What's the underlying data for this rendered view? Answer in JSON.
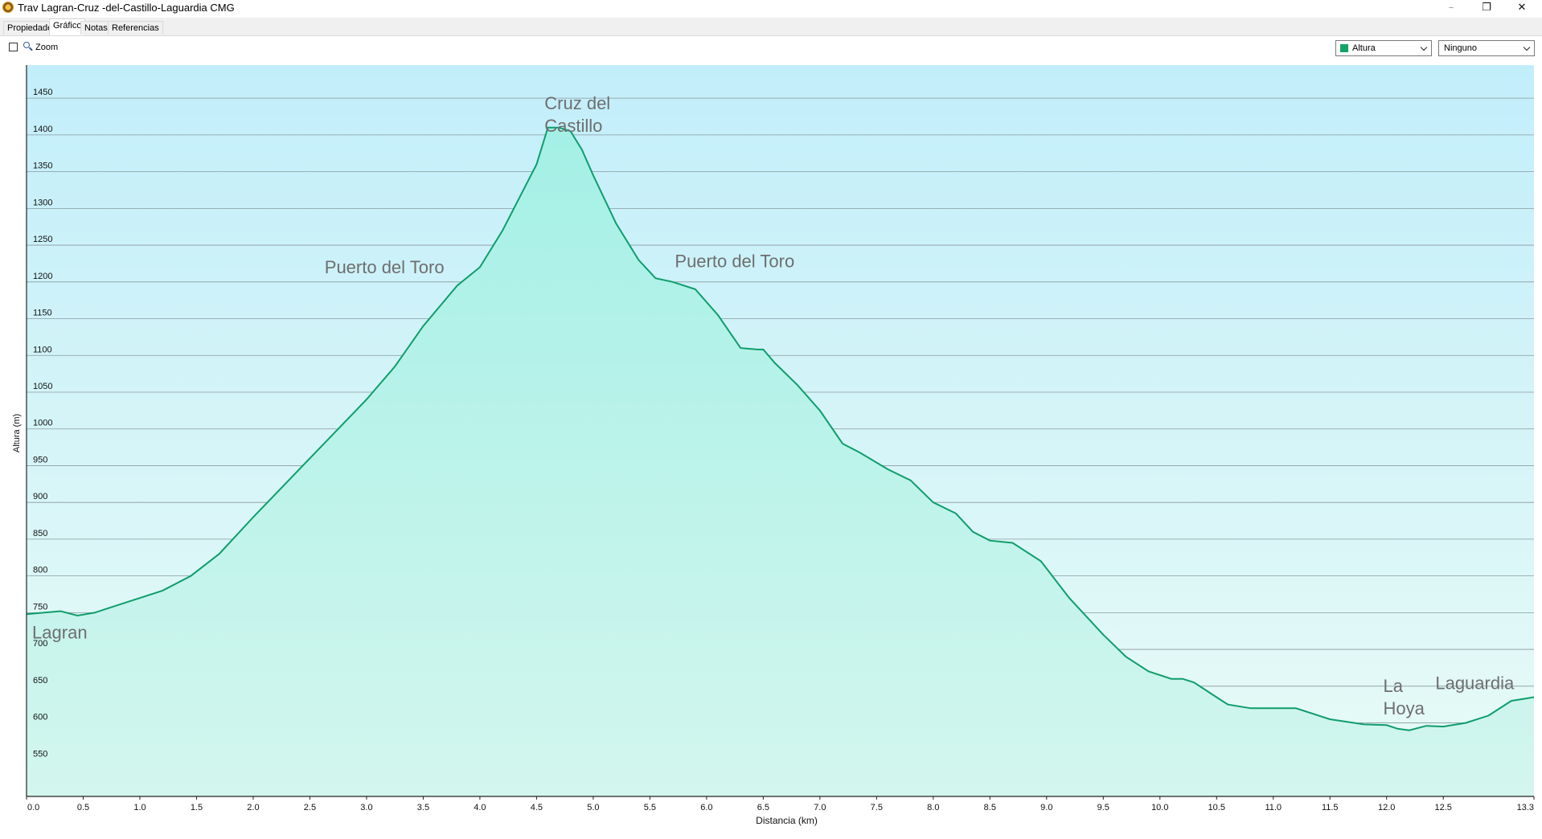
{
  "window": {
    "title": "Trav Lagran-Cruz -del-Castillo-Laguardia CMG",
    "icon": "app-compass-icon",
    "controls": {
      "minimize": "–",
      "maximize": "❐",
      "close": "✕"
    }
  },
  "tabs": [
    {
      "label": "Propiedades",
      "active": false
    },
    {
      "label": "Gráfico",
      "active": true
    },
    {
      "label": "Notas",
      "active": false
    },
    {
      "label": "Referencias",
      "active": false
    }
  ],
  "toolbar": {
    "zoom_label": "Zoom",
    "zoom_checked": false,
    "primary_select": {
      "value": "Altura",
      "color": "#13a36a"
    },
    "secondary_select": {
      "value": "Ninguno"
    }
  },
  "colors": {
    "line": "#0f9d6b",
    "plot_top": "#c2eefa",
    "plot_bottom": "#e8fbf6",
    "fill_top": "#a4f0e6",
    "fill_bottom": "#d3f6ee",
    "gridline": "#8a9aa0",
    "label": "#6e6e6e"
  },
  "chart_data": {
    "type": "area",
    "xlabel": "Distancia  (km)",
    "ylabel": "Altura (m)",
    "xlim": [
      0,
      13.3
    ],
    "ylim": [
      500,
      1495
    ],
    "x_ticks": [
      "0.0",
      "0.5",
      "1.0",
      "1.5",
      "2.0",
      "2.5",
      "3.0",
      "3.5",
      "4.0",
      "4.5",
      "5.0",
      "5.5",
      "6.0",
      "6.5",
      "7.0",
      "7.5",
      "8.0",
      "8.5",
      "9.0",
      "9.5",
      "10.0",
      "10.5",
      "11.0",
      "11.5",
      "12.0",
      "12.5",
      "13.3"
    ],
    "y_ticks": [
      "550",
      "600",
      "650",
      "700",
      "750",
      "800",
      "850",
      "900",
      "950",
      "1000",
      "1050",
      "1100",
      "1150",
      "1200",
      "1250",
      "1300",
      "1350",
      "1400",
      "1450"
    ],
    "grid": true,
    "series": [
      {
        "x": [
          0,
          0.15,
          0.3,
          0.45,
          0.6,
          0.8,
          1.0,
          1.2,
          1.45,
          1.7,
          2.0,
          2.25,
          2.5,
          2.75,
          3.0,
          3.25,
          3.5,
          3.8,
          4.0,
          4.2,
          4.4,
          4.5,
          4.6,
          4.7,
          4.8,
          4.9,
          5.0,
          5.2,
          5.4,
          5.55,
          5.7,
          5.9,
          6.1,
          6.3,
          6.45,
          6.5,
          6.6,
          6.8,
          7.0,
          7.2,
          7.35,
          7.6,
          7.8,
          8.0,
          8.2,
          8.35,
          8.5,
          8.7,
          8.95,
          9.2,
          9.5,
          9.7,
          9.9,
          10.1,
          10.2,
          10.3,
          10.45,
          10.6,
          10.8,
          11.0,
          11.2,
          11.5,
          11.8,
          12.0,
          12.1,
          12.2,
          12.35,
          12.5,
          12.7,
          12.9,
          13.1,
          13.3
        ],
        "y": [
          748,
          750,
          752,
          746,
          750,
          760,
          770,
          780,
          800,
          830,
          880,
          920,
          960,
          1000,
          1040,
          1085,
          1140,
          1195,
          1220,
          1270,
          1330,
          1360,
          1410,
          1410,
          1405,
          1380,
          1345,
          1280,
          1230,
          1205,
          1200,
          1190,
          1155,
          1110,
          1108,
          1108,
          1090,
          1060,
          1025,
          980,
          968,
          945,
          930,
          900,
          885,
          860,
          848,
          845,
          820,
          770,
          720,
          690,
          670,
          660,
          660,
          655,
          640,
          625,
          620,
          620,
          620,
          605,
          598,
          597,
          592,
          590,
          596,
          595,
          600,
          610,
          630,
          635
        ]
      }
    ],
    "annotations": [
      {
        "text": "Lagran",
        "x": 0.05,
        "y": 715,
        "lines": [
          "Lagran"
        ]
      },
      {
        "text": "Puerto del Toro",
        "x": 2.63,
        "y": 1212,
        "lines": [
          "Puerto del Toro"
        ]
      },
      {
        "text": "Cruz del Castillo",
        "x": 4.57,
        "y": 1435,
        "lines": [
          "Cruz del",
          "Castillo"
        ]
      },
      {
        "text": "Puerto del Toro",
        "x": 5.72,
        "y": 1220,
        "lines": [
          "Puerto del Toro"
        ]
      },
      {
        "text": "La Hoya",
        "x": 11.97,
        "y": 642,
        "lines": [
          "La",
          "Hoya"
        ]
      },
      {
        "text": "Laguardia",
        "x": 12.43,
        "y": 646,
        "lines": [
          "Laguardia"
        ]
      }
    ]
  }
}
